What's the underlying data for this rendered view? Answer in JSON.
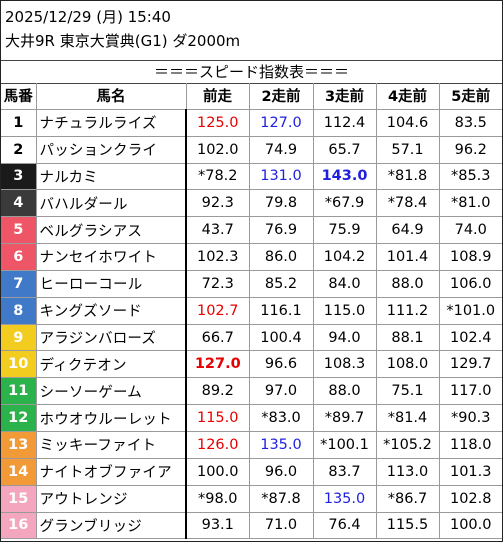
{
  "header": {
    "datetime": "2025/12/29 (月) 15:40",
    "race": "大井9R 東京大賞典(G1) ダ2000m"
  },
  "title": "＝＝＝スピード指数表＝＝＝",
  "columns": [
    "馬番",
    "馬名",
    "前走",
    "2走前",
    "3走前",
    "4走前",
    "5走前"
  ],
  "colors": {
    "frame1": "#ffffff",
    "frame2": "#ffffff",
    "frame3": "#1a1a1a",
    "frame4": "#3a3a3a",
    "frame5": "#ee5566",
    "frame6": "#ee5566",
    "frame7": "#3f79c8",
    "frame8": "#3f79c8",
    "frame9": "#f2cc1e",
    "frame10": "#f2cc1e",
    "frame11": "#2cb24a",
    "frame12": "#2cb24a",
    "frame13": "#f29a38",
    "frame14": "#f29a38",
    "frame15": "#f3a6bd",
    "frame16": "#f3a6bd",
    "red_value": "#e60000",
    "blue_value": "#1f1fe0"
  },
  "rows": [
    {
      "num": "1",
      "bg": "#ffffff",
      "fg": "#000000",
      "name": "ナチュラルライズ",
      "vals": [
        {
          "t": "125.0",
          "c": "red"
        },
        {
          "t": "127.0",
          "c": "blue"
        },
        {
          "t": "112.4"
        },
        {
          "t": "104.6"
        },
        {
          "t": "83.5"
        }
      ]
    },
    {
      "num": "2",
      "bg": "#ffffff",
      "fg": "#000000",
      "name": "パッションクライ",
      "vals": [
        {
          "t": "102.0"
        },
        {
          "t": "74.9"
        },
        {
          "t": "65.7"
        },
        {
          "t": "57.1"
        },
        {
          "t": "96.2"
        }
      ]
    },
    {
      "num": "3",
      "bg": "#1a1a1a",
      "fg": "#ffffff",
      "name": "ナルカミ",
      "vals": [
        {
          "t": "*78.2"
        },
        {
          "t": "131.0",
          "c": "blue"
        },
        {
          "t": "143.0",
          "c": "blue",
          "b": true
        },
        {
          "t": "*81.8"
        },
        {
          "t": "*85.3"
        }
      ]
    },
    {
      "num": "4",
      "bg": "#3a3a3a",
      "fg": "#ffffff",
      "name": "バハルダール",
      "vals": [
        {
          "t": "92.3"
        },
        {
          "t": "79.8"
        },
        {
          "t": "*67.9"
        },
        {
          "t": "*78.4"
        },
        {
          "t": "*81.0"
        }
      ]
    },
    {
      "num": "5",
      "bg": "#ee5566",
      "fg": "#ffffff",
      "name": "ベルグラシアス",
      "vals": [
        {
          "t": "43.7"
        },
        {
          "t": "76.9"
        },
        {
          "t": "75.9"
        },
        {
          "t": "64.9"
        },
        {
          "t": "74.0"
        }
      ]
    },
    {
      "num": "6",
      "bg": "#ee5566",
      "fg": "#ffffff",
      "name": "ナンセイホワイト",
      "vals": [
        {
          "t": "102.3"
        },
        {
          "t": "86.0"
        },
        {
          "t": "104.2"
        },
        {
          "t": "101.4"
        },
        {
          "t": "108.9"
        }
      ]
    },
    {
      "num": "7",
      "bg": "#3f79c8",
      "fg": "#ffffff",
      "name": "ヒーローコール",
      "vals": [
        {
          "t": "72.3"
        },
        {
          "t": "85.2"
        },
        {
          "t": "84.0"
        },
        {
          "t": "88.0"
        },
        {
          "t": "106.0"
        }
      ]
    },
    {
      "num": "8",
      "bg": "#3f79c8",
      "fg": "#ffffff",
      "name": "キングズソード",
      "vals": [
        {
          "t": "102.7",
          "c": "red"
        },
        {
          "t": "116.1"
        },
        {
          "t": "115.0"
        },
        {
          "t": "111.2"
        },
        {
          "t": "*101.0"
        }
      ]
    },
    {
      "num": "9",
      "bg": "#f2cc1e",
      "fg": "#ffffff",
      "name": "アラジンバローズ",
      "vals": [
        {
          "t": "66.7"
        },
        {
          "t": "100.4"
        },
        {
          "t": "94.0"
        },
        {
          "t": "88.1"
        },
        {
          "t": "102.4"
        }
      ]
    },
    {
      "num": "10",
      "bg": "#f2cc1e",
      "fg": "#ffffff",
      "name": "ディクテオン",
      "vals": [
        {
          "t": "127.0",
          "c": "red",
          "b": true
        },
        {
          "t": "96.6"
        },
        {
          "t": "108.3"
        },
        {
          "t": "108.0"
        },
        {
          "t": "129.7"
        }
      ]
    },
    {
      "num": "11",
      "bg": "#2cb24a",
      "fg": "#ffffff",
      "name": "シーソーゲーム",
      "vals": [
        {
          "t": "89.2"
        },
        {
          "t": "97.0"
        },
        {
          "t": "88.0"
        },
        {
          "t": "75.1"
        },
        {
          "t": "117.0"
        }
      ]
    },
    {
      "num": "12",
      "bg": "#2cb24a",
      "fg": "#ffffff",
      "name": "ホウオウルーレット",
      "vals": [
        {
          "t": "115.0",
          "c": "red"
        },
        {
          "t": "*83.0"
        },
        {
          "t": "*89.7"
        },
        {
          "t": "*81.4"
        },
        {
          "t": "*90.3"
        }
      ]
    },
    {
      "num": "13",
      "bg": "#f29a38",
      "fg": "#ffffff",
      "name": "ミッキーファイト",
      "vals": [
        {
          "t": "126.0",
          "c": "red"
        },
        {
          "t": "135.0",
          "c": "blue"
        },
        {
          "t": "*100.1"
        },
        {
          "t": "*105.2"
        },
        {
          "t": "118.0"
        }
      ]
    },
    {
      "num": "14",
      "bg": "#f29a38",
      "fg": "#ffffff",
      "name": "ナイトオブファイア",
      "vals": [
        {
          "t": "100.0"
        },
        {
          "t": "96.0"
        },
        {
          "t": "83.7"
        },
        {
          "t": "113.0"
        },
        {
          "t": "101.3"
        }
      ]
    },
    {
      "num": "15",
      "bg": "#f3a6bd",
      "fg": "#ffffff",
      "name": "アウトレンジ",
      "vals": [
        {
          "t": "*98.0"
        },
        {
          "t": "*87.8"
        },
        {
          "t": "135.0",
          "c": "blue"
        },
        {
          "t": "*86.7"
        },
        {
          "t": "102.8"
        }
      ]
    },
    {
      "num": "16",
      "bg": "#f3a6bd",
      "fg": "#ffffff",
      "name": "グランブリッジ",
      "vals": [
        {
          "t": "93.1"
        },
        {
          "t": "71.0"
        },
        {
          "t": "76.4"
        },
        {
          "t": "115.5"
        },
        {
          "t": "100.0"
        }
      ]
    }
  ]
}
